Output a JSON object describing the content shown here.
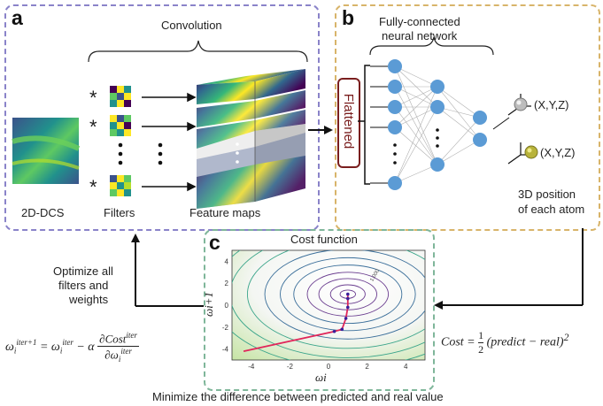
{
  "panels": {
    "a": "a",
    "b": "b",
    "c": "c"
  },
  "panel_a": {
    "title": "Convolution",
    "input_label": "2D-DCS",
    "filters_label": "Filters",
    "maps_label": "Feature maps",
    "conv_symbol": "*"
  },
  "panel_b": {
    "title_line1": "Fully-connected",
    "title_line2": "neural network",
    "flattened": "Flattened",
    "coord1": "(X,Y,Z)",
    "coord2": "(X,Y,Z)",
    "output_line1": "3D position",
    "output_line2": "of each atom"
  },
  "panel_c": {
    "title": "Cost function",
    "xlabel": "ωi",
    "ylabel": "ωi+1",
    "contour_label": "1.000"
  },
  "left_loop": {
    "line1": "Optimize all",
    "line2": "filters and",
    "line3": "weights",
    "update_rule": "ωiiter+1 = ωiiter − α ∂Costiter / ∂ωiiter"
  },
  "cost_formula": "Cost = 1/2 (predict − real)²",
  "caption": "Minimize the difference between predicted and real value",
  "colors": {
    "panel_a_border": "#8a83c9",
    "panel_b_border": "#d8b46a",
    "panel_c_border": "#7fb69a",
    "neuron": "#5b9bd5",
    "flatten_border": "#7a1e1e",
    "descent_path": "#e0265a",
    "heatmap_low": "#440154",
    "heatmap_mid": "#21918c",
    "heatmap_high": "#fde725"
  },
  "chart_data": {
    "type": "contour",
    "xlabel": "ωi",
    "ylabel": "ωi+1",
    "xlim": [
      -5,
      5
    ],
    "ylim": [
      -5,
      5
    ],
    "x_ticks": [
      -4,
      -2,
      0,
      2,
      4
    ],
    "y_ticks": [
      -4,
      -2,
      0,
      2,
      4
    ],
    "minimum": [
      1,
      1
    ],
    "descent_path": [
      [
        -4.4,
        -4.2
      ],
      [
        0.3,
        -2.4
      ],
      [
        0.7,
        -2.2
      ],
      [
        0.9,
        -1.2
      ],
      [
        1.0,
        -0.2
      ],
      [
        1.0,
        0.6
      ],
      [
        1.0,
        1.0
      ]
    ]
  }
}
